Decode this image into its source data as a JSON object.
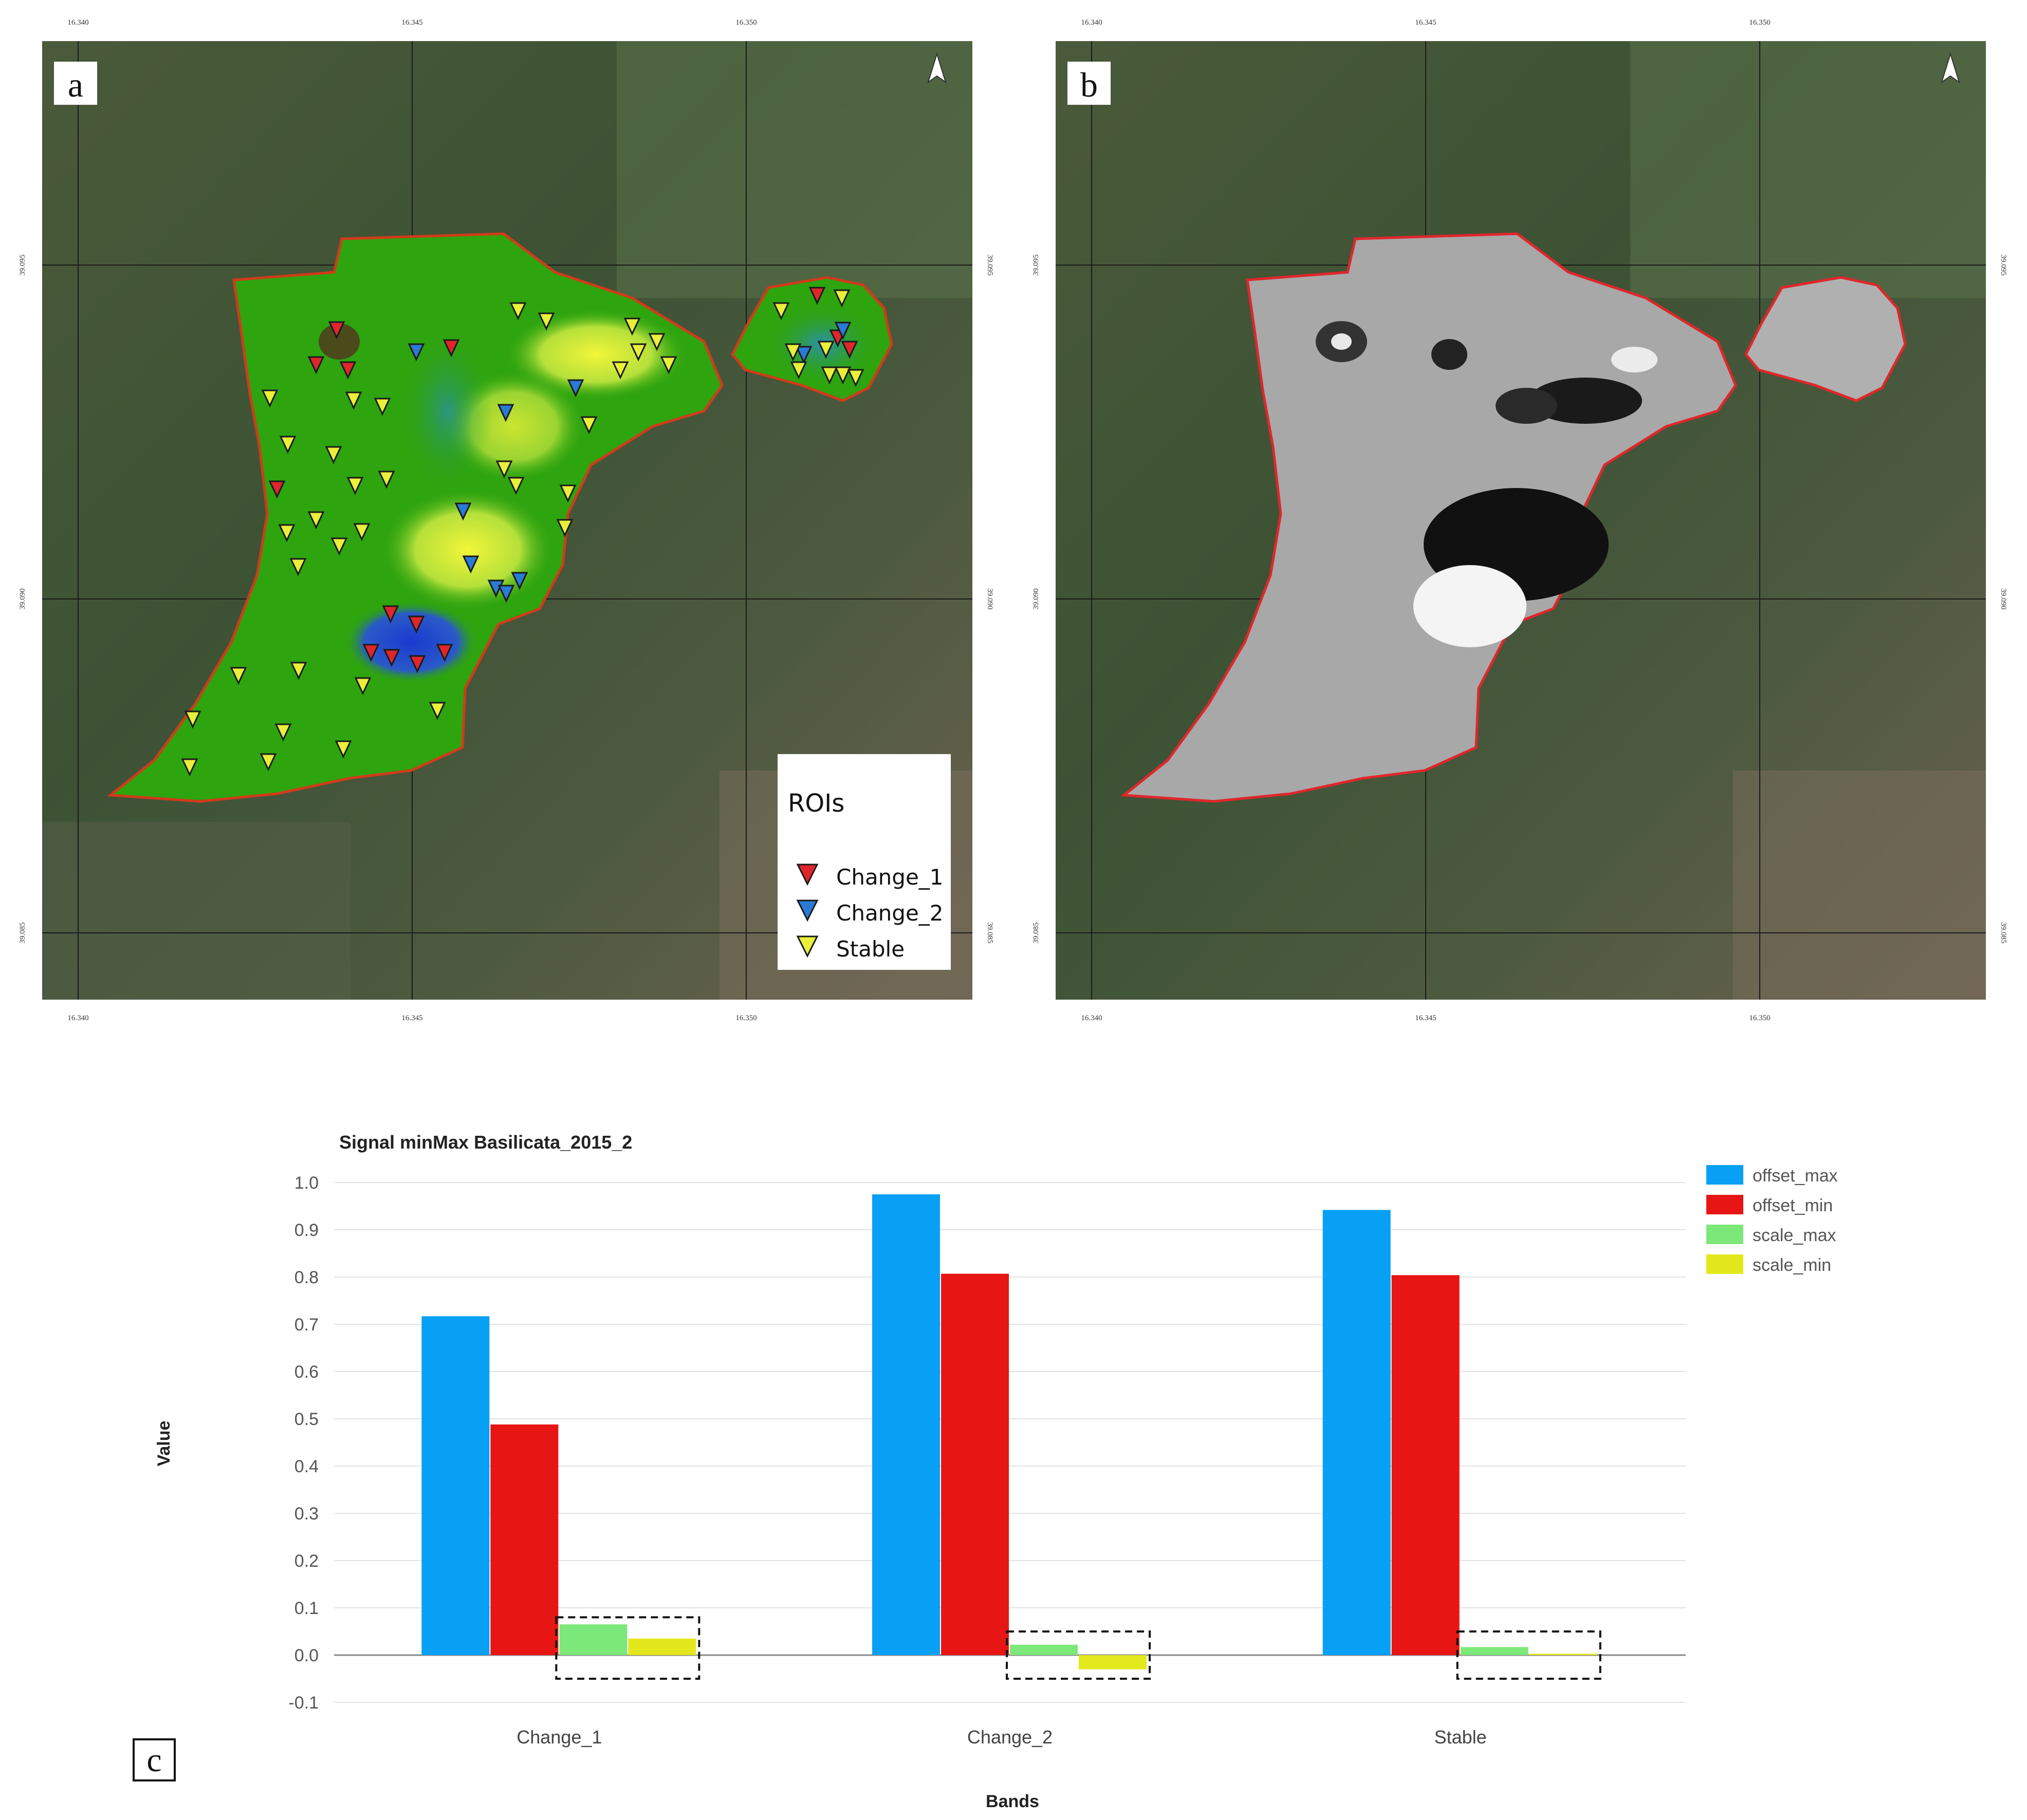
{
  "figure": {
    "panel_a": {
      "letter": "a",
      "coords_x": [
        "16.340",
        "16.345",
        "16.350"
      ],
      "coords_y": [
        "39.095",
        "39.090",
        "39.085"
      ],
      "legend": {
        "title": "ROIs",
        "items": [
          {
            "label": "Change_1",
            "color": "#e0262b"
          },
          {
            "label": "Change_2",
            "color": "#2a7bd6"
          },
          {
            "label": "Stable",
            "color": "#e9ef3a"
          }
        ]
      }
    },
    "panel_b": {
      "letter": "b",
      "coords_x": [
        "16.340",
        "16.345",
        "16.350"
      ],
      "coords_y": [
        "39.095",
        "39.090",
        "39.085"
      ]
    },
    "panel_c": {
      "letter": "c"
    }
  },
  "chart_data": {
    "type": "bar",
    "title": "Signal minMax Basilicata_2015_2",
    "xlabel": "Bands",
    "ylabel": "Value",
    "categories": [
      "Change_1",
      "Change_2",
      "Stable"
    ],
    "ylim": [
      -0.1,
      1.0
    ],
    "yticks": [
      "1.0",
      "0.9",
      "0.8",
      "0.7",
      "0.6",
      "0.5",
      "0.4",
      "0.3",
      "0.2",
      "0.1",
      "0.0",
      "-0.1"
    ],
    "grid": true,
    "legend_position": "top-right",
    "series": [
      {
        "name": "offset_max",
        "color": "#08a0f5",
        "values": [
          0.717,
          0.975,
          0.942
        ]
      },
      {
        "name": "offset_min",
        "color": "#e81515",
        "values": [
          0.488,
          0.807,
          0.804
        ]
      },
      {
        "name": "scale_max",
        "color": "#7de87a",
        "values": [
          0.065,
          0.022,
          0.017
        ]
      },
      {
        "name": "scale_min",
        "color": "#e3e81d",
        "values": [
          0.035,
          -0.03,
          0.003
        ]
      }
    ]
  }
}
